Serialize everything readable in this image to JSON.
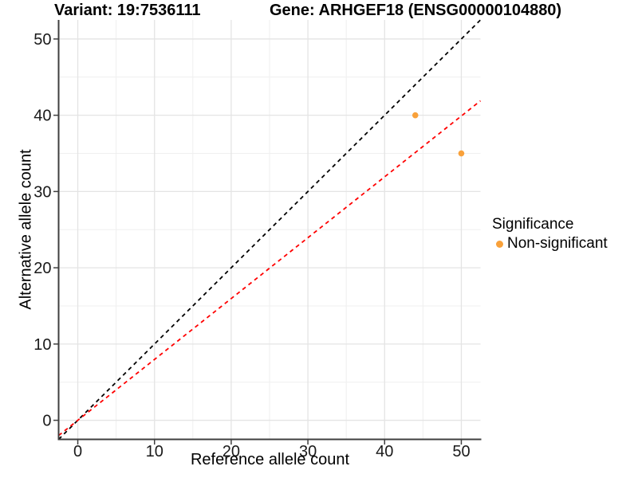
{
  "figure": {
    "title_left": "Variant: 19:7536111",
    "title_right": "Gene: ARHGEF18 (ENSG00000104880)"
  },
  "chart_data": {
    "type": "scatter",
    "title": "Variant: 19:7536111  Gene: ARHGEF18 (ENSG00000104880)",
    "xlabel": "Reference allele count",
    "ylabel": "Alternative allele count",
    "xlim": [
      -2.5,
      52.5
    ],
    "ylim": [
      -2.5,
      52.5
    ],
    "x_ticks": [
      0,
      10,
      20,
      30,
      40,
      50
    ],
    "y_ticks": [
      0,
      10,
      20,
      30,
      40,
      50
    ],
    "x_minor_ticks": [
      5,
      15,
      25,
      35,
      45
    ],
    "y_minor_ticks": [
      5,
      15,
      25,
      35,
      45
    ],
    "grid": true,
    "legend_position": "right",
    "point_color": "#F9A13A",
    "point_radius": 3.8,
    "points": [
      {
        "x": 44,
        "y": 40,
        "series": "Non-significant"
      },
      {
        "x": 50,
        "y": 35,
        "series": "Non-significant"
      }
    ],
    "lines": [
      {
        "name": "identity-line",
        "slope": 1,
        "intercept": 0,
        "color": "#000000",
        "style": "dashed"
      },
      {
        "name": "expected-ratio-line",
        "slope": 0.798,
        "intercept": 0,
        "color": "#FF0000",
        "style": "dashed"
      }
    ],
    "legend": {
      "title": "Significance",
      "items": [
        {
          "label": "Non-significant",
          "color": "#F9A13A"
        }
      ]
    },
    "colors": {
      "grid_major": "#E4E4E4",
      "grid_minor": "#EFEFEF",
      "axis_line": "#3F3F3F",
      "tick_text": "#1A1A1A"
    }
  }
}
